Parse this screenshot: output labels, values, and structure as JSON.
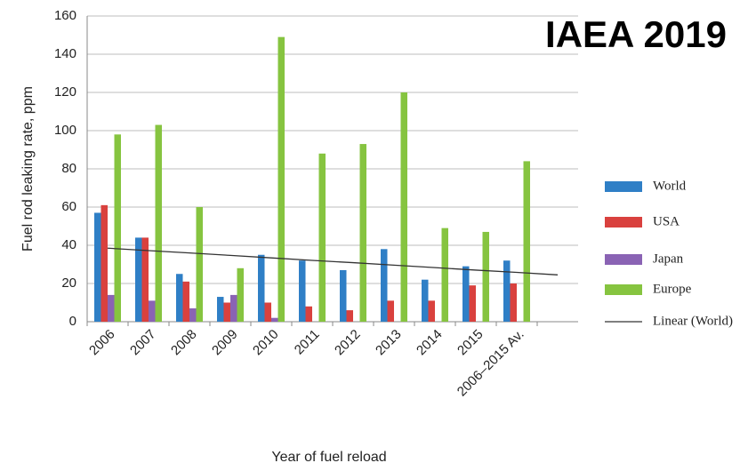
{
  "chart_data": {
    "type": "bar",
    "title": "IAEA 2019",
    "x_label": "Year of fuel reload",
    "y_label": "Fuel rod leaking rate, ppm",
    "categories": [
      "2006",
      "2007",
      "2008",
      "2009",
      "2010",
      "2011",
      "2012",
      "2013",
      "2014",
      "2015",
      "2006–2015 Av.",
      null
    ],
    "series": [
      {
        "name": "World",
        "color": "#2f7fc6",
        "values": [
          57,
          44,
          25,
          13,
          35,
          32,
          27,
          38,
          22,
          29,
          32,
          null
        ]
      },
      {
        "name": "USA",
        "color": "#d9413e",
        "values": [
          61,
          44,
          21,
          10,
          10,
          8,
          6,
          11,
          11,
          19,
          20,
          null
        ]
      },
      {
        "name": "Japan",
        "color": "#8a63b4",
        "values": [
          14,
          11,
          7,
          14,
          2,
          null,
          null,
          null,
          null,
          null,
          null,
          null
        ]
      },
      {
        "name": "Europe",
        "color": "#86c440",
        "values": [
          98,
          103,
          60,
          28,
          149,
          88,
          93,
          120,
          49,
          47,
          84,
          null
        ]
      },
      {
        "name": "Linear (World)",
        "color": "#333333",
        "type": "line",
        "values": [
          38.5,
          37.2,
          36.0,
          34.7,
          33.4,
          32.1,
          30.9,
          29.6,
          28.3,
          27.0,
          25.8,
          24.5
        ]
      }
    ],
    "ylim": [
      0,
      160
    ],
    "yticks": [
      0,
      20,
      40,
      60,
      80,
      100,
      120,
      140,
      160
    ],
    "grid": true,
    "legend": "right"
  }
}
